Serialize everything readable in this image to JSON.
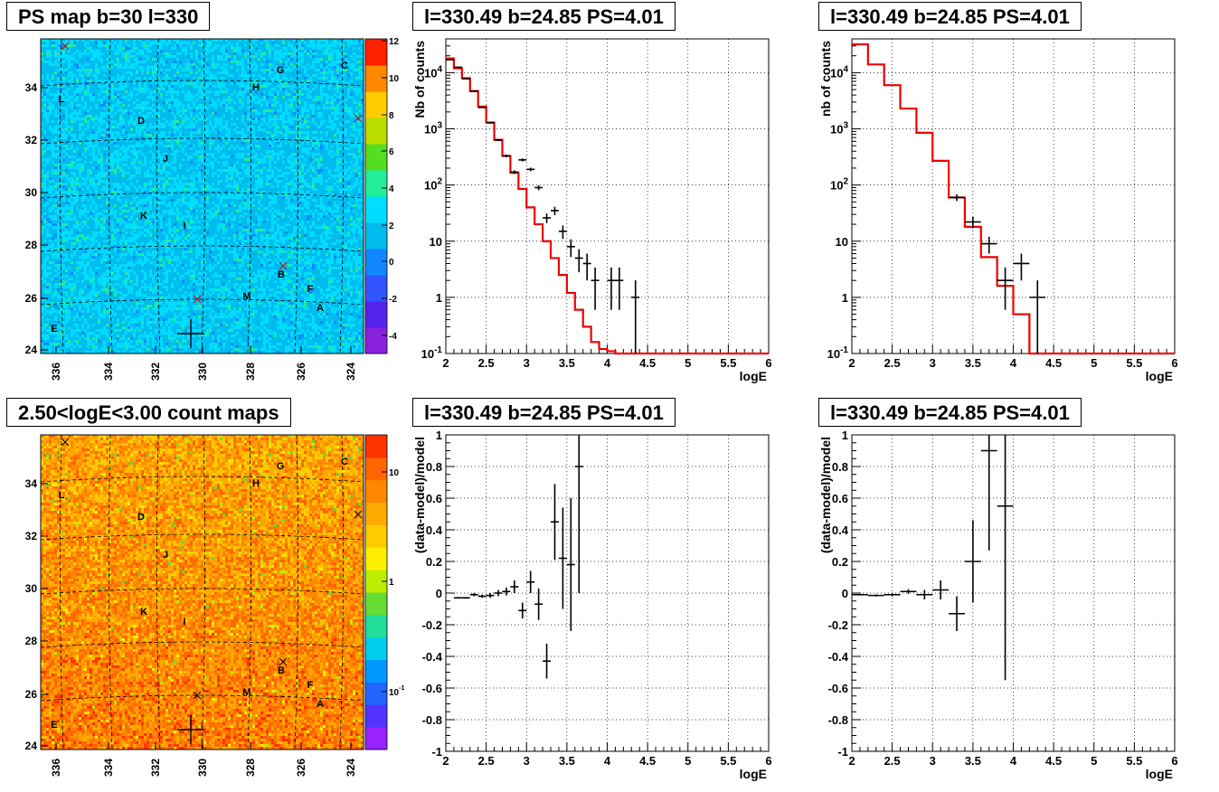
{
  "panel_titles": {
    "ps_map": "PS map b=30 l=330",
    "spec_mid": "l=330.49 b=24.85 PS=4.01",
    "spec_right": "l=330.49 b=24.85 PS=4.01",
    "count_map": "2.50<logE<3.00 count maps",
    "resid_mid": "l=330.49 b=24.85 PS=4.01",
    "resid_right": "l=330.49 b=24.85 PS=4.01"
  },
  "chart_data": [
    {
      "id": "ps_map",
      "type": "heatmap",
      "title": "PS map b=30 l=330",
      "x_ticks": [
        "336",
        "334",
        "332",
        "330",
        "328",
        "326",
        "324"
      ],
      "y_ticks": [
        "24",
        "26",
        "28",
        "30",
        "32",
        "34"
      ],
      "colorbar_ticks": [
        "12",
        "10",
        "8",
        "6",
        "4",
        "2",
        "0",
        "-2",
        "-4"
      ],
      "colorbar_range": [
        -5,
        12
      ],
      "typical_value": 0,
      "source_labels": [
        "G",
        "C",
        "H",
        "L",
        "D",
        "J",
        "K",
        "I",
        "B",
        "F",
        "M",
        "A",
        "E"
      ]
    },
    {
      "id": "count_map",
      "type": "heatmap",
      "title": "2.50<logE<3.00 count maps",
      "x_ticks": [
        "336",
        "334",
        "332",
        "330",
        "328",
        "326",
        "324"
      ],
      "y_ticks": [
        "24",
        "26",
        "28",
        "30",
        "32",
        "34"
      ],
      "colorbar_ticks": [
        "10",
        "1",
        "10-1"
      ],
      "colorbar_log": true,
      "source_labels": [
        "G",
        "C",
        "H",
        "L",
        "D",
        "J",
        "K",
        "I",
        "B",
        "F",
        "M",
        "A",
        "E"
      ]
    },
    {
      "id": "spec_mid",
      "type": "line",
      "title": "l=330.49 b=24.85 PS=4.01",
      "xlabel": "logE",
      "ylabel": "Nb of counts",
      "xlim": [
        2,
        6
      ],
      "ylog": true,
      "ylim": [
        0.1,
        40000
      ],
      "x_ticks": [
        "2",
        "2.5",
        "3",
        "3.5",
        "4",
        "4.5",
        "5",
        "5.5",
        "6"
      ],
      "y_ticks": [
        "10-1",
        "1",
        "10",
        "102",
        "103",
        "104"
      ],
      "model_step": {
        "edges": [
          2.0,
          2.1,
          2.2,
          2.3,
          2.4,
          2.5,
          2.6,
          2.7,
          2.8,
          2.9,
          3.0,
          3.1,
          3.2,
          3.3,
          3.4,
          3.5,
          3.6,
          3.7,
          3.8,
          3.9,
          4.0,
          4.1,
          4.2,
          6.0
        ],
        "values": [
          18000,
          12000,
          8000,
          4700,
          2500,
          1300,
          640,
          330,
          165,
          85,
          40,
          20,
          10,
          5,
          2.5,
          1.2,
          0.6,
          0.3,
          0.16,
          0.12,
          0.11,
          0.1,
          0.07
        ]
      },
      "data_points": [
        {
          "x": 2.05,
          "y": 17000,
          "xerr": 0.05,
          "ylo": 16800,
          "yhi": 17200
        },
        {
          "x": 2.15,
          "y": 12500,
          "xerr": 0.05,
          "ylo": 12300,
          "yhi": 12700
        },
        {
          "x": 2.25,
          "y": 7800,
          "xerr": 0.05,
          "ylo": 7650,
          "yhi": 7950
        },
        {
          "x": 2.35,
          "y": 4700,
          "xerr": 0.05,
          "ylo": 4600,
          "yhi": 4800
        },
        {
          "x": 2.45,
          "y": 2400,
          "xerr": 0.05,
          "ylo": 2350,
          "yhi": 2450
        },
        {
          "x": 2.55,
          "y": 1280,
          "xerr": 0.05,
          "ylo": 1245,
          "yhi": 1315
        },
        {
          "x": 2.65,
          "y": 630,
          "xerr": 0.05,
          "ylo": 605,
          "yhi": 655
        },
        {
          "x": 2.75,
          "y": 330,
          "xerr": 0.05,
          "ylo": 312,
          "yhi": 348
        },
        {
          "x": 2.85,
          "y": 170,
          "xerr": 0.05,
          "ylo": 157,
          "yhi": 183
        },
        {
          "x": 2.95,
          "y": 280,
          "xerr": 0.05,
          "ylo": 263,
          "yhi": 297
        },
        {
          "x": 3.05,
          "y": 190,
          "xerr": 0.05,
          "ylo": 176,
          "yhi": 204
        },
        {
          "x": 3.15,
          "y": 90,
          "xerr": 0.05,
          "ylo": 81,
          "yhi": 99
        },
        {
          "x": 3.25,
          "y": 26,
          "xerr": 0.05,
          "ylo": 21,
          "yhi": 31
        },
        {
          "x": 3.35,
          "y": 35,
          "xerr": 0.05,
          "ylo": 29,
          "yhi": 41
        },
        {
          "x": 3.45,
          "y": 15,
          "xerr": 0.05,
          "ylo": 11,
          "yhi": 19
        },
        {
          "x": 3.55,
          "y": 8,
          "xerr": 0.05,
          "ylo": 5.2,
          "yhi": 10.8
        },
        {
          "x": 3.65,
          "y": 5,
          "xerr": 0.05,
          "ylo": 2.8,
          "yhi": 7.2
        },
        {
          "x": 3.75,
          "y": 4,
          "xerr": 0.05,
          "ylo": 2,
          "yhi": 6
        },
        {
          "x": 3.85,
          "y": 2,
          "xerr": 0.05,
          "ylo": 0.6,
          "yhi": 3.4
        },
        {
          "x": 4.05,
          "y": 2,
          "xerr": 0.05,
          "ylo": 0.6,
          "yhi": 3.4
        },
        {
          "x": 4.15,
          "y": 2,
          "xerr": 0.05,
          "ylo": 0.6,
          "yhi": 3.4
        },
        {
          "x": 4.35,
          "y": 1,
          "xerr": 0.05,
          "ylo": 0.1,
          "yhi": 2
        }
      ]
    },
    {
      "id": "spec_right",
      "type": "line",
      "title": "l=330.49 b=24.85 PS=4.01",
      "xlabel": "logE",
      "ylabel": "nb of counts",
      "xlim": [
        2,
        6
      ],
      "ylog": true,
      "ylim": [
        0.1,
        40000
      ],
      "x_ticks": [
        "2",
        "2.5",
        "3",
        "3.5",
        "4",
        "4.5",
        "5",
        "5.5",
        "6"
      ],
      "y_ticks": [
        "10-1",
        "1",
        "10",
        "102",
        "103",
        "104"
      ],
      "model_step": {
        "edges": [
          2.0,
          2.2,
          2.4,
          2.6,
          2.8,
          3.0,
          3.2,
          3.4,
          3.6,
          3.8,
          4.0,
          4.2,
          6.0
        ],
        "values": [
          32000,
          14000,
          6000,
          2300,
          850,
          270,
          60,
          18,
          5.2,
          1.6,
          0.5,
          0.1
        ]
      },
      "data_points": [
        {
          "x": 3.3,
          "y": 60,
          "xerr": 0.1,
          "ylo": 52,
          "yhi": 68
        },
        {
          "x": 3.5,
          "y": 22,
          "xerr": 0.1,
          "ylo": 17,
          "yhi": 27
        },
        {
          "x": 3.7,
          "y": 9,
          "xerr": 0.1,
          "ylo": 6,
          "yhi": 12
        },
        {
          "x": 3.9,
          "y": 2,
          "xerr": 0.1,
          "ylo": 0.6,
          "yhi": 3.4
        },
        {
          "x": 4.1,
          "y": 4,
          "xerr": 0.1,
          "ylo": 2,
          "yhi": 6
        },
        {
          "x": 4.3,
          "y": 1,
          "xerr": 0.1,
          "ylo": 0.1,
          "yhi": 2
        }
      ]
    },
    {
      "id": "resid_mid",
      "type": "scatter",
      "title": "l=330.49 b=24.85 PS=4.01",
      "xlabel": "logE",
      "ylabel": "(data-model)/model",
      "xlim": [
        2,
        6
      ],
      "ylim": [
        -1,
        1
      ],
      "x_ticks": [
        "2",
        "2.5",
        "3",
        "3.5",
        "4",
        "4.5",
        "5",
        "5.5",
        "6"
      ],
      "y_ticks": [
        "-1",
        "-0.8",
        "-0.6",
        "-0.4",
        "-0.2",
        "0",
        "0.2",
        "0.4",
        "0.6",
        "0.8",
        "1"
      ],
      "data_points": [
        {
          "x": 2.15,
          "y": -0.03,
          "xerr": 0.05,
          "yerr": 0.005
        },
        {
          "x": 2.25,
          "y": -0.03,
          "xerr": 0.05,
          "yerr": 0.005
        },
        {
          "x": 2.35,
          "y": -0.01,
          "xerr": 0.05,
          "yerr": 0.01
        },
        {
          "x": 2.45,
          "y": -0.02,
          "xerr": 0.05,
          "yerr": 0.01
        },
        {
          "x": 2.55,
          "y": -0.015,
          "xerr": 0.05,
          "yerr": 0.015
        },
        {
          "x": 2.65,
          "y": 0.0,
          "xerr": 0.05,
          "yerr": 0.02
        },
        {
          "x": 2.75,
          "y": 0.01,
          "xerr": 0.05,
          "yerr": 0.025
        },
        {
          "x": 2.85,
          "y": 0.04,
          "xerr": 0.05,
          "yerr": 0.04
        },
        {
          "x": 2.95,
          "y": -0.11,
          "xerr": 0.05,
          "yerr": 0.05
        },
        {
          "x": 3.05,
          "y": 0.07,
          "xerr": 0.05,
          "yerr": 0.07
        },
        {
          "x": 3.15,
          "y": -0.07,
          "xerr": 0.05,
          "yerr": 0.1
        },
        {
          "x": 3.25,
          "y": -0.43,
          "xerr": 0.05,
          "yerr": 0.11
        },
        {
          "x": 3.35,
          "y": 0.45,
          "xerr": 0.05,
          "yerr": 0.24
        },
        {
          "x": 3.45,
          "y": 0.22,
          "xerr": 0.05,
          "yerr": 0.32
        },
        {
          "x": 3.55,
          "y": 0.18,
          "xerr": 0.05,
          "yerr": 0.42
        },
        {
          "x": 3.65,
          "y": 0.8,
          "xerr": 0.05,
          "yerr": 0.8
        }
      ]
    },
    {
      "id": "resid_right",
      "type": "scatter",
      "title": "l=330.49 b=24.85 PS=4.01",
      "xlabel": "logE",
      "ylabel": "(data-model)/model",
      "xlim": [
        2,
        6
      ],
      "ylim": [
        -1,
        1
      ],
      "x_ticks": [
        "2",
        "2.5",
        "3",
        "3.5",
        "4",
        "4.5",
        "5",
        "5.5",
        "6"
      ],
      "y_ticks": [
        "-1",
        "-0.8",
        "-0.6",
        "-0.4",
        "-0.2",
        "0",
        "0.2",
        "0.4",
        "0.6",
        "0.8",
        "1"
      ],
      "data_points": [
        {
          "x": 2.1,
          "y": -0.01,
          "xerr": 0.1,
          "yerr": 0.005
        },
        {
          "x": 2.3,
          "y": -0.015,
          "xerr": 0.1,
          "yerr": 0.007
        },
        {
          "x": 2.5,
          "y": -0.01,
          "xerr": 0.1,
          "yerr": 0.01
        },
        {
          "x": 2.7,
          "y": 0.01,
          "xerr": 0.1,
          "yerr": 0.015
        },
        {
          "x": 2.9,
          "y": -0.01,
          "xerr": 0.1,
          "yerr": 0.03
        },
        {
          "x": 3.1,
          "y": 0.02,
          "xerr": 0.1,
          "yerr": 0.06
        },
        {
          "x": 3.3,
          "y": -0.13,
          "xerr": 0.1,
          "yerr": 0.11
        },
        {
          "x": 3.5,
          "y": 0.2,
          "xerr": 0.1,
          "yerr": 0.26
        },
        {
          "x": 3.7,
          "y": 0.9,
          "xerr": 0.1,
          "yerr": 0.63
        },
        {
          "x": 3.9,
          "y": 0.55,
          "xerr": 0.1,
          "yerr": 1.1
        }
      ]
    }
  ]
}
